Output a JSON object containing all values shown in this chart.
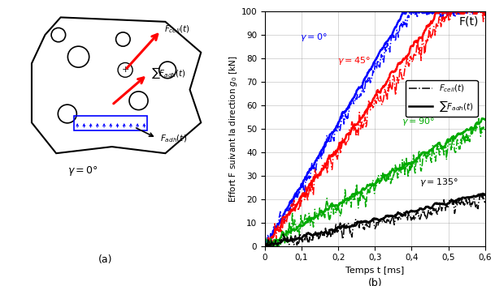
{
  "title_right": "F(t)",
  "xlabel": "Temps t [ms]",
  "ylabel": "Effort F suivant la direction $g_0$ [kN]",
  "xlim": [
    0,
    0.6
  ],
  "ylim": [
    0,
    100
  ],
  "xticks": [
    0,
    0.1,
    0.2,
    0.3,
    0.4,
    0.5,
    0.6
  ],
  "yticks": [
    0,
    10,
    20,
    30,
    40,
    50,
    60,
    70,
    80,
    90,
    100
  ],
  "xtick_labels": [
    "0",
    "0,1",
    "0,2",
    "0,3",
    "0,4",
    "0,5",
    "0,6"
  ],
  "ytick_labels": [
    "0",
    "10",
    "20",
    "30",
    "40",
    "50",
    "60",
    "70",
    "80",
    "90",
    "100"
  ],
  "colors": {
    "gamma0": "#0000FF",
    "gamma45": "#FF0000",
    "gamma90": "#00AA00",
    "gamma135": "#000000"
  },
  "label_gamma0": "$\\gamma =0°$",
  "label_gamma45": "$\\gamma =45°$",
  "label_gamma90": "$\\gamma =90°$",
  "label_gamma135": "$\\gamma =135°$",
  "subtitle_a": "(a)",
  "subtitle_b": "(b)",
  "gamma_label": "$\\gamma=0°$",
  "seed": 42
}
